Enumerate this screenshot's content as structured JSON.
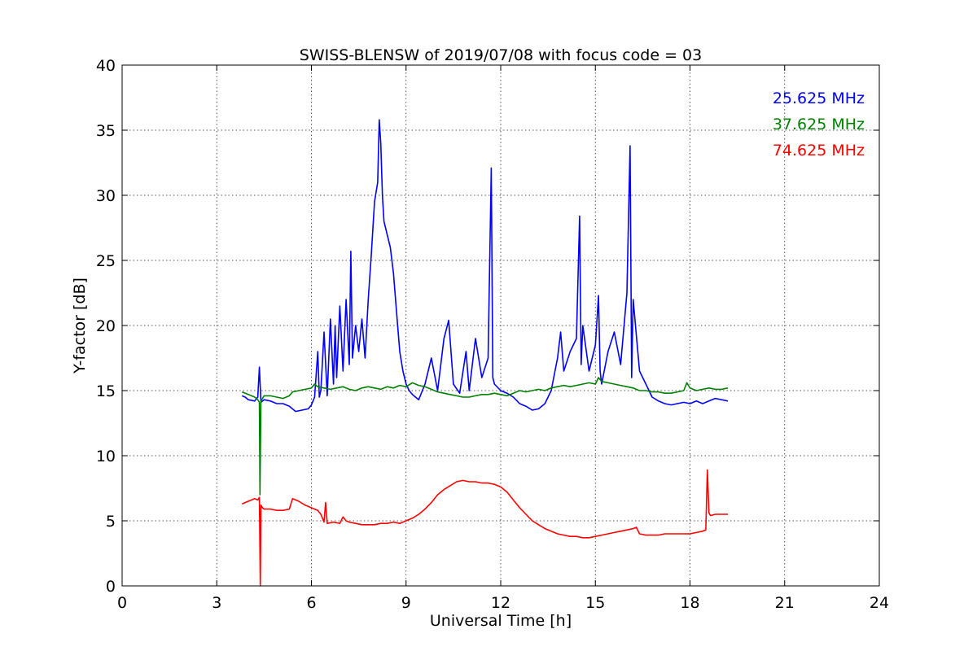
{
  "chart_data": {
    "type": "line",
    "title": "SWISS-BLENSW of 2019/07/08 with focus code = 03",
    "xlabel": "Universal Time [h]",
    "ylabel": "Y-factor [dB]",
    "xlim": [
      0,
      24
    ],
    "ylim": [
      0,
      40
    ],
    "xticks": [
      0,
      3,
      6,
      9,
      12,
      15,
      18,
      21,
      24
    ],
    "yticks": [
      0,
      5,
      10,
      15,
      20,
      25,
      30,
      35,
      40
    ],
    "xtick_labels": [
      "0",
      "3",
      "6",
      "9",
      "12",
      "15",
      "18",
      "21",
      "24"
    ],
    "ytick_labels": [
      "0",
      "5",
      "10",
      "15",
      "20",
      "25",
      "30",
      "35",
      "40"
    ],
    "grid": true,
    "legend_position": "top-right",
    "series": [
      {
        "name": "25.625 MHz",
        "color": "#0000ff",
        "x": [
          3.8,
          3.9,
          4.0,
          4.2,
          4.3,
          4.35,
          4.4,
          4.5,
          4.7,
          4.9,
          5.1,
          5.3,
          5.5,
          5.7,
          5.9,
          6.0,
          6.1,
          6.2,
          6.25,
          6.3,
          6.4,
          6.5,
          6.6,
          6.7,
          6.75,
          6.8,
          6.9,
          7.0,
          7.1,
          7.2,
          7.25,
          7.3,
          7.4,
          7.5,
          7.6,
          7.7,
          7.8,
          7.9,
          8.0,
          8.1,
          8.15,
          8.2,
          8.25,
          8.3,
          8.4,
          8.5,
          8.6,
          8.7,
          8.8,
          8.9,
          9.0,
          9.1,
          9.2,
          9.3,
          9.4,
          9.6,
          9.8,
          10.0,
          10.2,
          10.35,
          10.5,
          10.7,
          10.9,
          11.0,
          11.2,
          11.4,
          11.6,
          11.7,
          11.75,
          11.8,
          12.0,
          12.2,
          12.4,
          12.6,
          12.8,
          13.0,
          13.2,
          13.4,
          13.6,
          13.8,
          13.9,
          14.0,
          14.2,
          14.4,
          14.5,
          14.55,
          14.6,
          14.8,
          15.0,
          15.1,
          15.15,
          15.2,
          15.4,
          15.6,
          15.8,
          16.0,
          16.1,
          16.15,
          16.2,
          16.4,
          16.6,
          16.8,
          17.0,
          17.2,
          17.4,
          17.6,
          17.8,
          18.0,
          18.2,
          18.4,
          18.6,
          18.8,
          19.0,
          19.2
        ],
        "y": [
          14.6,
          14.5,
          14.3,
          14.2,
          14.5,
          16.8,
          14.1,
          14.3,
          14.2,
          14.0,
          14.0,
          13.8,
          13.4,
          13.5,
          13.6,
          13.9,
          14.5,
          18.0,
          14.5,
          15.0,
          19.5,
          14.6,
          20.5,
          15.5,
          20.0,
          16.0,
          21.5,
          16.5,
          22.0,
          17.0,
          25.7,
          17.5,
          20.0,
          18.0,
          20.5,
          17.5,
          22.0,
          25.5,
          29.5,
          31.0,
          35.8,
          34.0,
          30.0,
          28.0,
          27.0,
          26.0,
          24.0,
          21.0,
          18.0,
          16.5,
          15.5,
          15.0,
          14.7,
          14.5,
          14.3,
          15.5,
          17.5,
          15.0,
          19.0,
          20.4,
          15.5,
          14.8,
          18.0,
          15.0,
          19.0,
          16.0,
          17.5,
          32.1,
          16.0,
          15.5,
          15.0,
          14.8,
          14.5,
          14.0,
          13.8,
          13.5,
          13.6,
          14.0,
          15.0,
          17.5,
          19.5,
          16.5,
          18.0,
          19.0,
          28.4,
          17.0,
          20.0,
          16.5,
          18.5,
          22.3,
          16.5,
          15.5,
          18.0,
          19.5,
          17.0,
          22.5,
          33.8,
          16.0,
          22.0,
          16.5,
          15.5,
          14.5,
          14.2,
          14.0,
          13.9,
          14.0,
          14.1,
          14.0,
          14.2,
          14.0,
          14.2,
          14.4,
          14.3,
          14.2
        ]
      },
      {
        "name": "37.625 MHz",
        "color": "#008000",
        "x": [
          3.8,
          4.0,
          4.2,
          4.3,
          4.35,
          4.37,
          4.4,
          4.45,
          4.5,
          4.7,
          4.9,
          5.1,
          5.3,
          5.4,
          5.6,
          5.8,
          6.0,
          6.1,
          6.2,
          6.4,
          6.6,
          6.8,
          7.0,
          7.2,
          7.4,
          7.6,
          7.8,
          8.0,
          8.2,
          8.4,
          8.6,
          8.8,
          9.0,
          9.2,
          9.4,
          9.6,
          9.8,
          10.0,
          10.2,
          10.4,
          10.6,
          10.8,
          11.0,
          11.2,
          11.4,
          11.6,
          11.8,
          12.0,
          12.2,
          12.4,
          12.6,
          12.8,
          13.0,
          13.2,
          13.4,
          13.6,
          13.8,
          14.0,
          14.2,
          14.4,
          14.6,
          14.8,
          15.0,
          15.1,
          15.2,
          15.4,
          15.6,
          15.8,
          16.0,
          16.2,
          16.4,
          16.6,
          16.8,
          17.0,
          17.2,
          17.4,
          17.6,
          17.8,
          17.9,
          18.0,
          18.2,
          18.4,
          18.6,
          18.8,
          19.0,
          19.2
        ],
        "y": [
          14.9,
          14.7,
          14.5,
          14.3,
          14.1,
          7.0,
          14.2,
          14.4,
          14.6,
          14.6,
          14.5,
          14.4,
          14.6,
          14.9,
          15.0,
          15.1,
          15.2,
          15.5,
          15.3,
          15.2,
          15.1,
          15.2,
          15.3,
          15.1,
          15.0,
          15.2,
          15.3,
          15.2,
          15.1,
          15.3,
          15.2,
          15.4,
          15.3,
          15.6,
          15.4,
          15.3,
          15.1,
          14.9,
          14.8,
          14.7,
          14.6,
          14.5,
          14.5,
          14.6,
          14.7,
          14.7,
          14.8,
          14.7,
          14.6,
          14.8,
          15.0,
          14.9,
          15.0,
          15.1,
          15.0,
          15.2,
          15.3,
          15.4,
          15.3,
          15.4,
          15.5,
          15.6,
          15.5,
          16.0,
          15.7,
          15.6,
          15.5,
          15.4,
          15.3,
          15.2,
          15.0,
          15.0,
          14.9,
          14.9,
          14.8,
          14.8,
          14.9,
          15.0,
          15.6,
          15.2,
          15.0,
          15.1,
          15.2,
          15.1,
          15.1,
          15.2
        ]
      },
      {
        "name": "74.625 MHz",
        "color": "#ff0000",
        "x": [
          3.8,
          4.0,
          4.2,
          4.3,
          4.35,
          4.38,
          4.4,
          4.45,
          4.5,
          4.7,
          4.9,
          5.1,
          5.3,
          5.4,
          5.6,
          5.8,
          6.0,
          6.2,
          6.3,
          6.4,
          6.45,
          6.5,
          6.7,
          6.9,
          7.0,
          7.1,
          7.2,
          7.4,
          7.6,
          7.8,
          8.0,
          8.2,
          8.4,
          8.6,
          8.8,
          9.0,
          9.2,
          9.4,
          9.6,
          9.8,
          10.0,
          10.2,
          10.4,
          10.6,
          10.8,
          11.0,
          11.2,
          11.4,
          11.6,
          11.8,
          12.0,
          12.2,
          12.4,
          12.6,
          12.8,
          13.0,
          13.2,
          13.4,
          13.6,
          13.8,
          14.0,
          14.2,
          14.4,
          14.6,
          14.8,
          15.0,
          15.2,
          15.4,
          15.6,
          15.8,
          16.0,
          16.2,
          16.3,
          16.4,
          16.6,
          16.8,
          17.0,
          17.2,
          17.4,
          17.6,
          17.8,
          18.0,
          18.2,
          18.4,
          18.5,
          18.55,
          18.6,
          18.65,
          18.8,
          19.0,
          19.2
        ],
        "y": [
          6.3,
          6.5,
          6.7,
          6.6,
          6.8,
          0.0,
          6.2,
          6.0,
          5.9,
          5.9,
          5.8,
          5.8,
          5.9,
          6.7,
          6.5,
          6.2,
          6.0,
          5.8,
          5.5,
          4.9,
          6.4,
          4.8,
          4.9,
          4.8,
          5.3,
          5.0,
          4.9,
          4.8,
          4.7,
          4.7,
          4.7,
          4.8,
          4.8,
          4.9,
          4.8,
          5.0,
          5.2,
          5.5,
          5.9,
          6.4,
          7.0,
          7.4,
          7.7,
          8.0,
          8.1,
          8.0,
          8.0,
          7.9,
          7.9,
          7.8,
          7.6,
          7.2,
          6.6,
          6.0,
          5.5,
          5.0,
          4.7,
          4.4,
          4.2,
          4.0,
          3.9,
          3.8,
          3.8,
          3.7,
          3.7,
          3.8,
          3.9,
          4.0,
          4.1,
          4.2,
          4.3,
          4.4,
          4.5,
          4.0,
          3.9,
          3.9,
          3.9,
          4.0,
          4.0,
          4.0,
          4.0,
          4.0,
          4.1,
          4.2,
          4.3,
          8.9,
          5.6,
          5.4,
          5.5,
          5.5,
          5.5
        ]
      }
    ]
  }
}
